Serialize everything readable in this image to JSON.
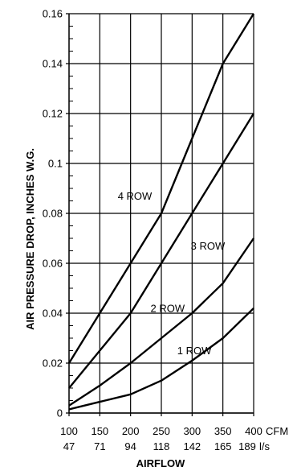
{
  "chart_data": {
    "type": "line",
    "title": "",
    "xlabel": "AIRFLOW",
    "ylabel": "AIR PRESSURE DROP, INCHES W.G.",
    "xlim": [
      100,
      400
    ],
    "ylim": [
      0,
      0.16
    ],
    "grid": true,
    "x_ticks": [
      100,
      150,
      200,
      250,
      300,
      350,
      400
    ],
    "x_tick_labels": [
      "100",
      "150",
      "200",
      "250",
      "300",
      "350",
      "400"
    ],
    "x_unit_label": "CFM",
    "x_secondary_tick_labels": [
      "47",
      "71",
      "94",
      "118",
      "142",
      "165",
      "189"
    ],
    "x_secondary_unit_label": "l/s",
    "y_ticks": [
      0,
      0.02,
      0.04,
      0.06,
      0.08,
      0.1,
      0.12,
      0.14,
      0.16
    ],
    "y_tick_labels": [
      "0",
      "0.02",
      "0.04",
      "0.06",
      "0.08",
      "0.1",
      "0.12",
      "0.14",
      "0.16"
    ],
    "series": [
      {
        "name": "1 ROW",
        "x": [
          100,
          150,
          200,
          250,
          300,
          350,
          400
        ],
        "values": [
          0.0015,
          0.0045,
          0.0075,
          0.013,
          0.021,
          0.03,
          0.042
        ]
      },
      {
        "name": "2 ROW",
        "x": [
          100,
          150,
          200,
          250,
          300,
          350,
          400
        ],
        "values": [
          0.003,
          0.011,
          0.02,
          0.03,
          0.04,
          0.052,
          0.07
        ]
      },
      {
        "name": "3 ROW",
        "x": [
          100,
          150,
          200,
          250,
          300,
          350,
          400
        ],
        "values": [
          0.01,
          0.025,
          0.04,
          0.06,
          0.08,
          0.1,
          0.12
        ]
      },
      {
        "name": "4 ROW",
        "x": [
          100,
          150,
          200,
          250,
          300,
          350,
          400
        ],
        "values": [
          0.02,
          0.04,
          0.06,
          0.08,
          0.11,
          0.14,
          0.16
        ]
      }
    ]
  }
}
